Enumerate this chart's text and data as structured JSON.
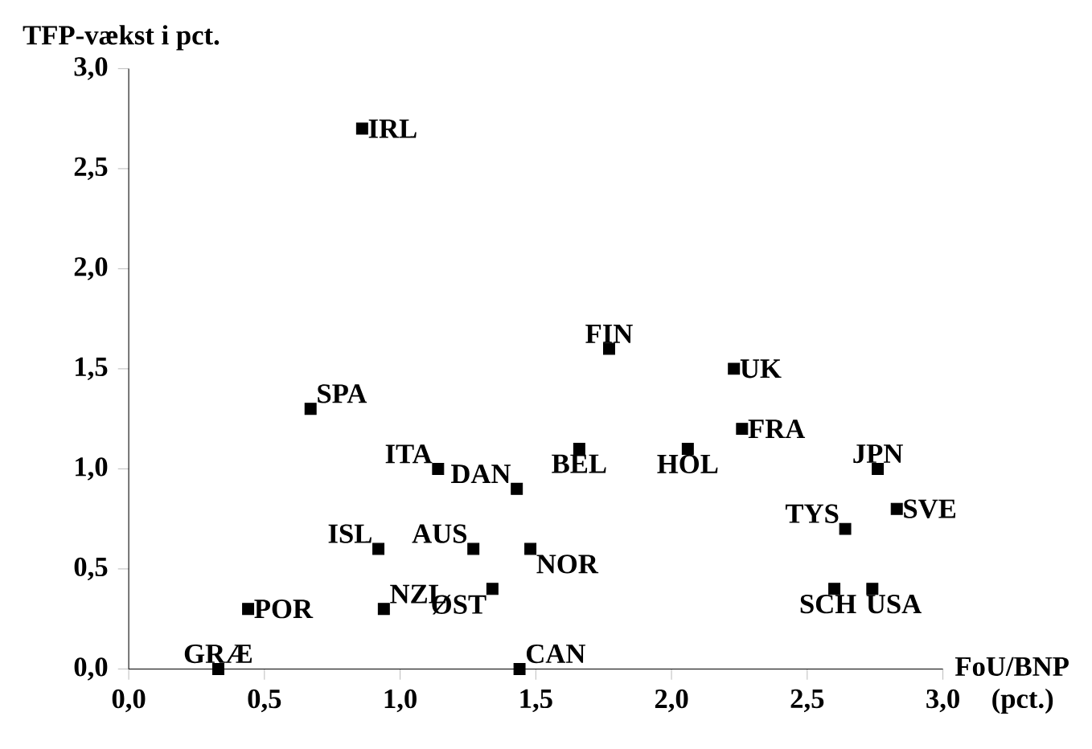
{
  "chart_data": {
    "type": "scatter",
    "xlabel": "FoU/BNP (pct.)",
    "ylabel": "TFP-vækst i pct.",
    "marker": "square",
    "xlim": [
      0,
      3
    ],
    "ylim": [
      0,
      3
    ],
    "xticks": [
      {
        "value": 0,
        "label": "0,0"
      },
      {
        "value": 0.5,
        "label": "0,5"
      },
      {
        "value": 1,
        "label": "1,0"
      },
      {
        "value": 1.5,
        "label": "1,5"
      },
      {
        "value": 2,
        "label": "2,0"
      },
      {
        "value": 2.5,
        "label": "2,5"
      },
      {
        "value": 3,
        "label": "3,0"
      }
    ],
    "yticks": [
      {
        "value": 0,
        "label": "0,0"
      },
      {
        "value": 0.5,
        "label": "0,5"
      },
      {
        "value": 1,
        "label": "1,0"
      },
      {
        "value": 1.5,
        "label": "1,5"
      },
      {
        "value": 2,
        "label": "2,0"
      },
      {
        "value": 2.5,
        "label": "2,5"
      },
      {
        "value": 3,
        "label": "3,0"
      }
    ],
    "series": [
      {
        "color": "#000000",
        "x": [
          0.33,
          0.44,
          0.67,
          0.86,
          0.92,
          0.94,
          1.14,
          1.27,
          1.34,
          1.43,
          1.44,
          1.48,
          1.77,
          2.23,
          2.26,
          1.66,
          2.06,
          2.76,
          2.83,
          2.64,
          2.6,
          2.74
        ],
        "values": [
          0,
          0.3,
          1.3,
          2.7,
          0.6,
          0.3,
          1.0,
          0.6,
          0.4,
          0.9,
          0,
          0.6,
          1.6,
          1.5,
          1.2,
          1.1,
          1.1,
          1.0,
          0.8,
          0.7,
          0.4,
          0.4
        ]
      }
    ],
    "annotations": [
      {
        "text": "GRÆ",
        "x": 0.33,
        "y": 0
      },
      {
        "text": "POR",
        "x": 0.44,
        "y": 0.3
      },
      {
        "text": "SPA",
        "x": 0.67,
        "y": 1.3
      },
      {
        "text": "IRL",
        "x": 0.86,
        "y": 2.7
      },
      {
        "text": "ISL",
        "x": 0.92,
        "y": 0.6
      },
      {
        "text": "NZL",
        "x": 0.94,
        "y": 0.3
      },
      {
        "text": "ITA",
        "x": 1.14,
        "y": 1.0
      },
      {
        "text": "AUS",
        "x": 1.27,
        "y": 0.6
      },
      {
        "text": "ØST",
        "x": 1.34,
        "y": 0.4
      },
      {
        "text": "DAN",
        "x": 1.43,
        "y": 0.9
      },
      {
        "text": "CAN",
        "x": 1.44,
        "y": 0
      },
      {
        "text": "NOR",
        "x": 1.48,
        "y": 0.6
      },
      {
        "text": "FIN",
        "x": 1.77,
        "y": 1.6
      },
      {
        "text": "UK",
        "x": 2.23,
        "y": 1.5
      },
      {
        "text": "FRA",
        "x": 2.26,
        "y": 1.2
      },
      {
        "text": "BEL",
        "x": 1.66,
        "y": 1.1
      },
      {
        "text": "HOL",
        "x": 2.06,
        "y": 1.1
      },
      {
        "text": "JPN",
        "x": 2.76,
        "y": 1.0
      },
      {
        "text": "SVE",
        "x": 2.83,
        "y": 0.8
      },
      {
        "text": "TYS",
        "x": 2.64,
        "y": 0.7
      },
      {
        "text": "SCH",
        "x": 2.6,
        "y": 0.4
      },
      {
        "text": "USA",
        "x": 2.74,
        "y": 0.4
      }
    ]
  }
}
